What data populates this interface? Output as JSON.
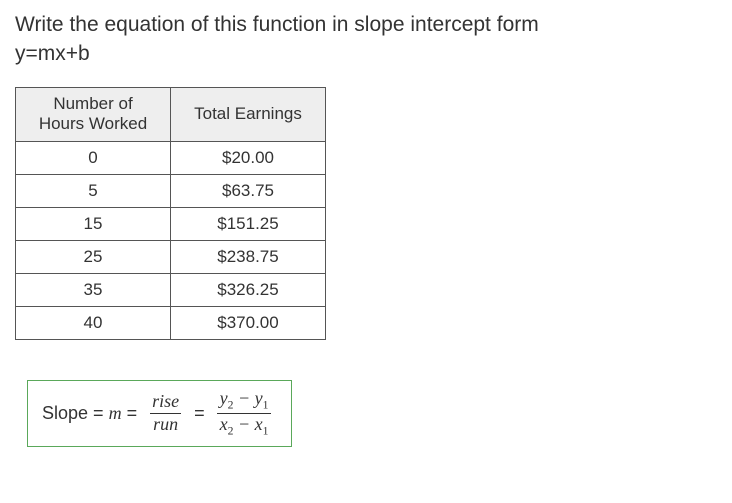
{
  "question": {
    "line1": "Write the equation of this function in slope intercept form",
    "line2": "y=mx+b"
  },
  "table": {
    "headers": {
      "col1_line1": "Number of",
      "col1_line2": "Hours Worked",
      "col2": "Total Earnings"
    },
    "header_bg": "#eeeeee",
    "border_color": "#555555",
    "rows": [
      {
        "hours": "0",
        "earnings": "$20.00"
      },
      {
        "hours": "5",
        "earnings": "$63.75"
      },
      {
        "hours": "15",
        "earnings": "$151.25"
      },
      {
        "hours": "25",
        "earnings": "$238.75"
      },
      {
        "hours": "35",
        "earnings": "$326.25"
      },
      {
        "hours": "40",
        "earnings": "$370.00"
      }
    ]
  },
  "formula": {
    "lhs_text": "Slope = ",
    "lhs_m": "m",
    "equals": " =",
    "rise": "rise",
    "run": "run",
    "equals2": "=",
    "y2": "y",
    "sub2": "2",
    "minus": " − ",
    "y1": "y",
    "sub1": "1",
    "x2": "x",
    "x1": "x",
    "box_border": "#5aa85a"
  }
}
